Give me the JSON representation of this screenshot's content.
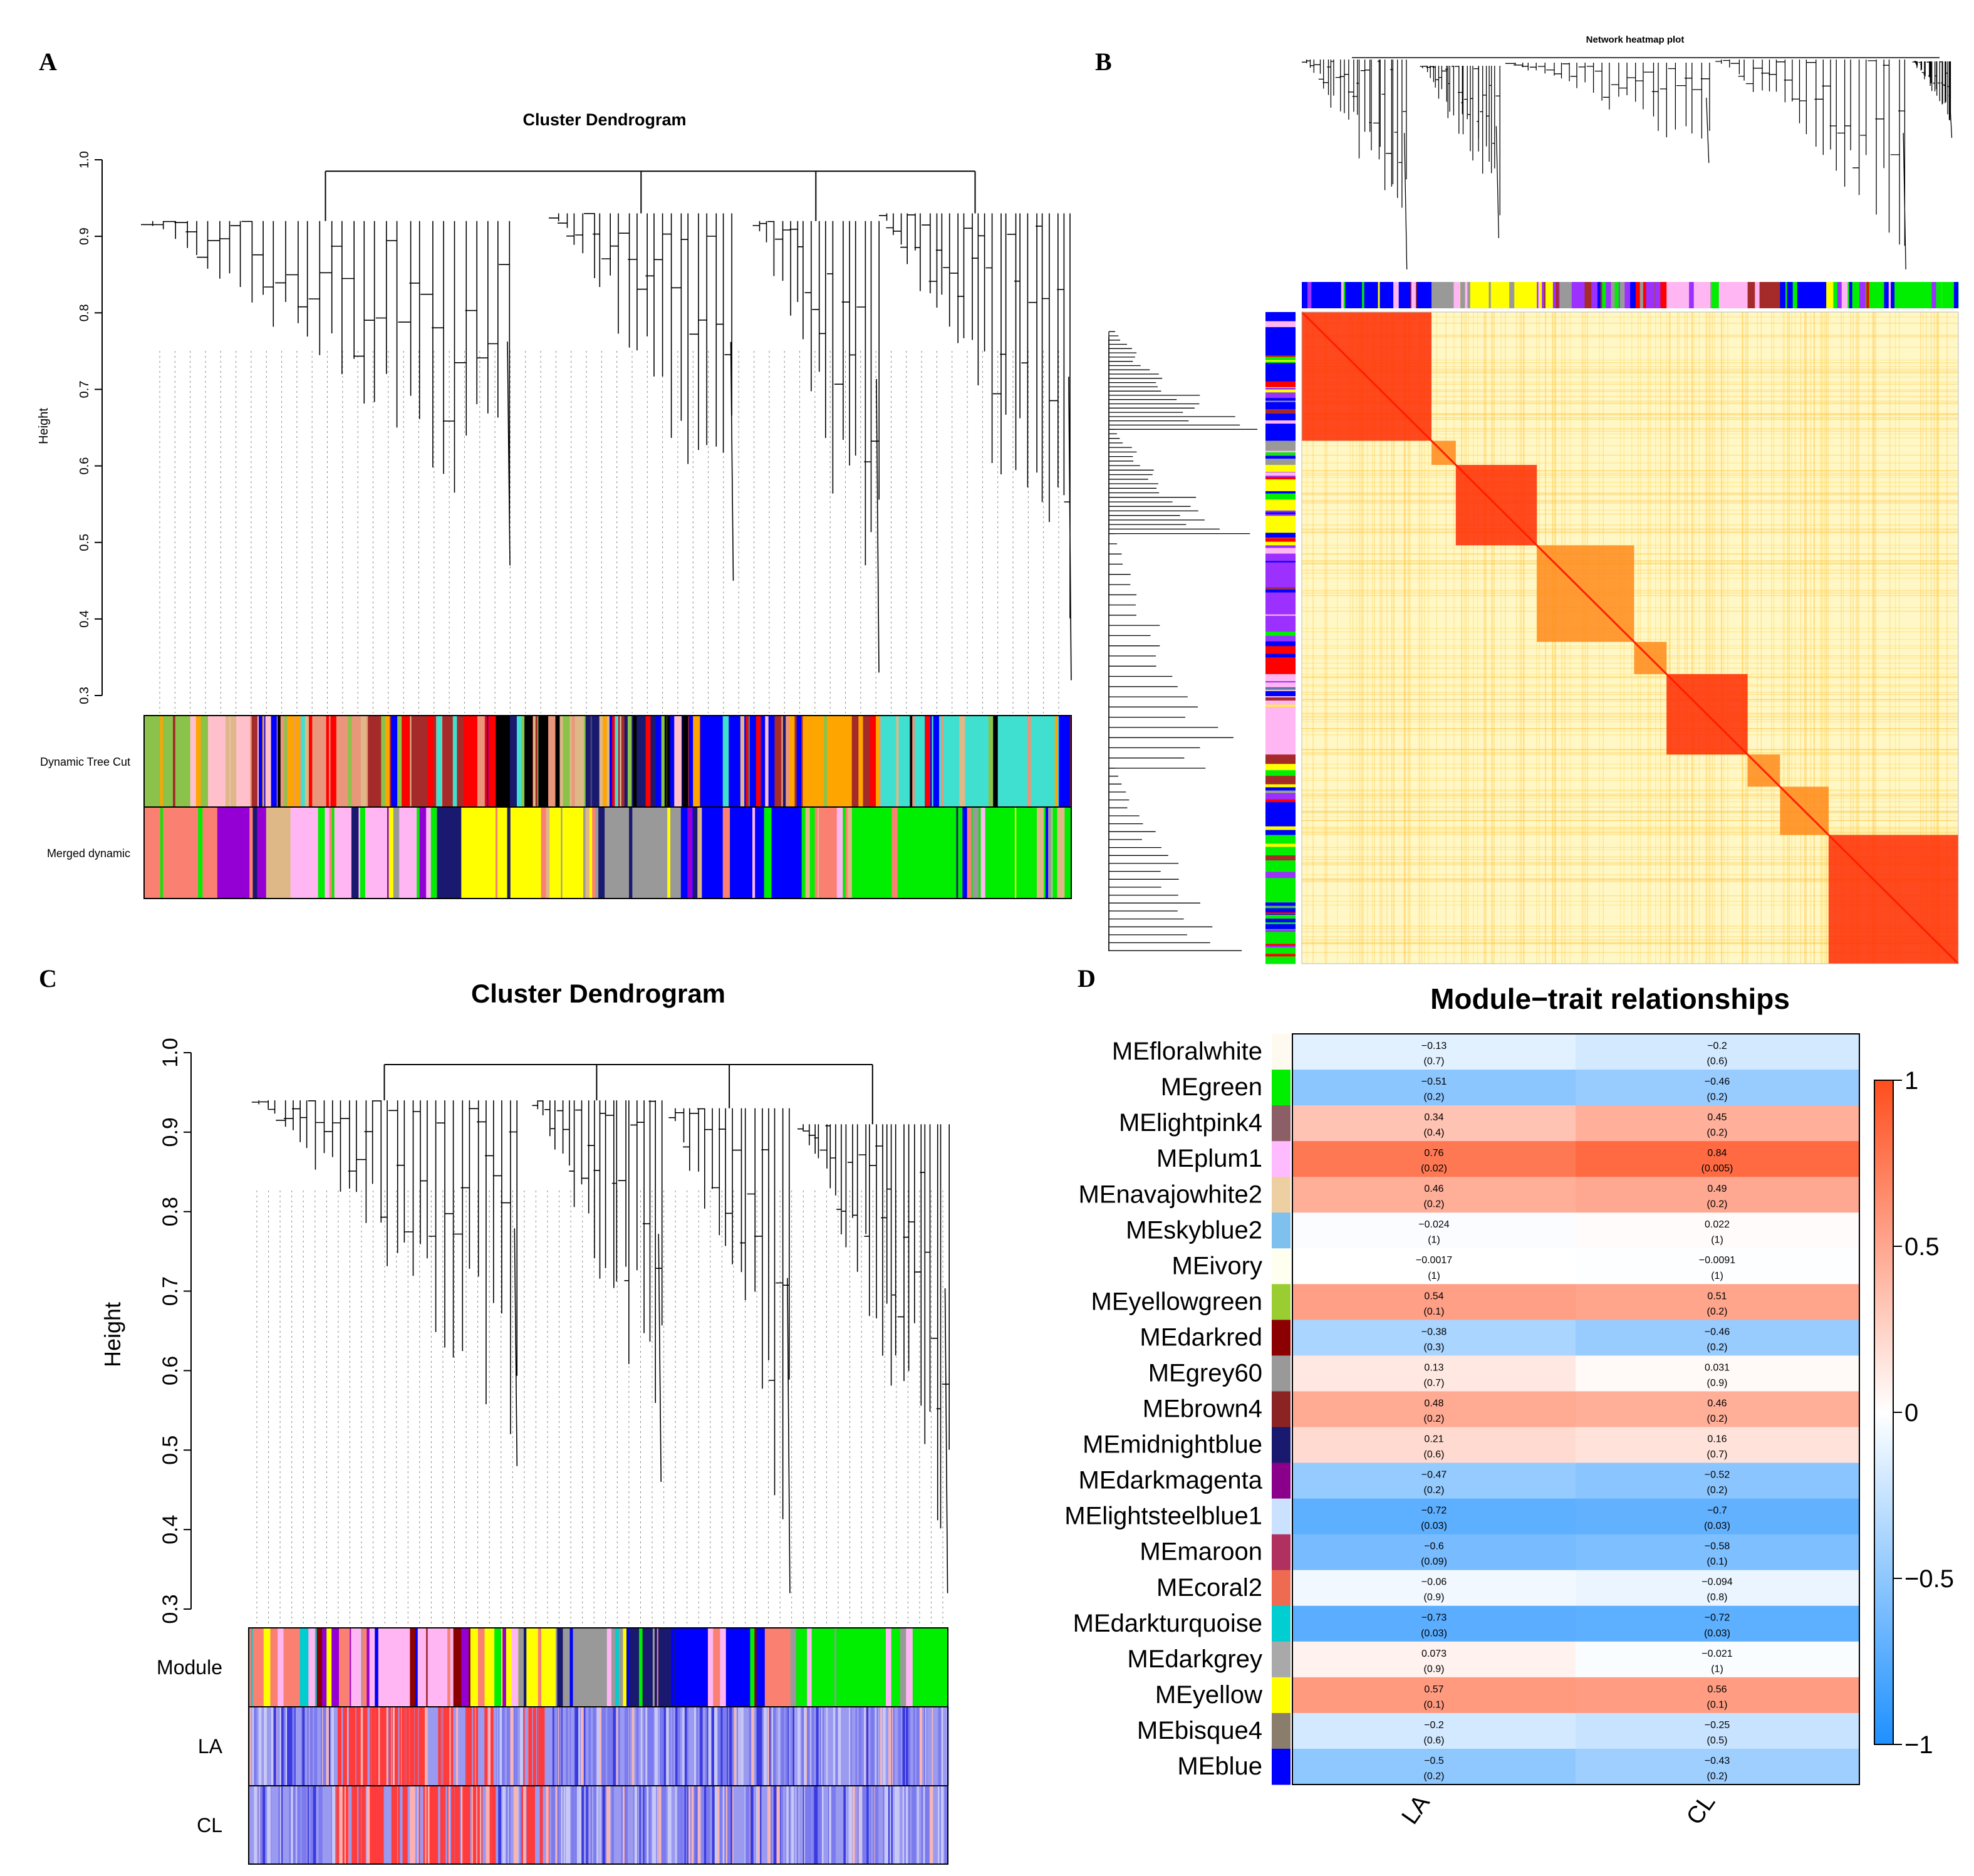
{
  "panels": {
    "a": "A",
    "b": "B",
    "c": "C",
    "d": "D"
  },
  "chart_data": [
    {
      "type": "dendrogram",
      "panel": "A",
      "title": "Cluster Dendrogram",
      "ylabel": "Height",
      "ylim": [
        0.3,
        1.0
      ],
      "yticks": [
        "0.3",
        "0.4",
        "0.5",
        "0.6",
        "0.7",
        "0.8",
        "0.9",
        "1.0"
      ],
      "row_labels": [
        "Dynamic Tree Cut",
        "Merged dynamic"
      ],
      "cluster_bottoms": [
        0.47,
        0.45,
        0.33,
        0.32
      ],
      "dynamic_colors": [
        "#8bc34a",
        "#ffc0cb",
        "#e9967a",
        "#a52a2a",
        "#ff0000",
        "#000000",
        "#deb887",
        "#191970",
        "#0000ff",
        "#ffa500",
        "#40e0d0"
      ],
      "merged_colors": [
        "#fa8072",
        "#9400d3",
        "#deb887",
        "#ffb6f3",
        "#191970",
        "#ffff00",
        "#999999",
        "#0000ff",
        "#fa8072",
        "#00ee00"
      ]
    },
    {
      "type": "heatmap",
      "panel": "B",
      "title": "Network heatmap plot",
      "module_order": [
        "#0000ff",
        "#999999",
        "#ffff00",
        "#9b30ff",
        "#ff0000",
        "#ffb6f3",
        "#a52a2a",
        "#0000ff",
        "#00ee00"
      ]
    },
    {
      "type": "dendrogram",
      "panel": "C",
      "title": "Cluster Dendrogram",
      "ylabel": "Height",
      "ylim": [
        0.3,
        1.0
      ],
      "yticks": [
        "0.3",
        "0.4",
        "0.5",
        "0.6",
        "0.7",
        "0.8",
        "0.9",
        "1.0"
      ],
      "row_labels": [
        "Module",
        "LA",
        "CL"
      ],
      "cluster_bottoms": [
        0.48,
        0.46,
        0.32,
        0.32
      ],
      "module_colors": [
        "#fa8072",
        "#00ced1",
        "#9400d3",
        "#ffb6f3",
        "#8b0000",
        "#ffff00",
        "#999999",
        "#191970",
        "#0000ff",
        "#fa8072",
        "#00ee00"
      ]
    },
    {
      "type": "table",
      "panel": "D",
      "title": "Module−trait relationships",
      "traits": [
        "LA",
        "CL"
      ],
      "colorbar_ticks": [
        "1",
        "0.5",
        "0",
        "−0.5",
        "−1"
      ],
      "modules": [
        {
          "name": "MEfloralwhite",
          "color": "#fffaf0",
          "r": [
            -0.13,
            -0.2
          ],
          "cor": [
            "−0.13",
            "−0.2"
          ],
          "p": [
            "(0.7)",
            "(0.6)"
          ]
        },
        {
          "name": "MEgreen",
          "color": "#00ee00",
          "r": [
            -0.51,
            -0.46
          ],
          "cor": [
            "−0.51",
            "−0.46"
          ],
          "p": [
            "(0.2)",
            "(0.2)"
          ]
        },
        {
          "name": "MElightpink4",
          "color": "#8b5f65",
          "r": [
            0.34,
            0.45
          ],
          "cor": [
            "0.34",
            "0.45"
          ],
          "p": [
            "(0.4)",
            "(0.2)"
          ]
        },
        {
          "name": "MEplum1",
          "color": "#ffbbff",
          "r": [
            0.76,
            0.84
          ],
          "cor": [
            "0.76",
            "0.84"
          ],
          "p": [
            "(0.02)",
            "(0.005)"
          ]
        },
        {
          "name": "MEnavajowhite2",
          "color": "#eecfa1",
          "r": [
            0.46,
            0.49
          ],
          "cor": [
            "0.46",
            "0.49"
          ],
          "p": [
            "(0.2)",
            "(0.2)"
          ]
        },
        {
          "name": "MEskyblue2",
          "color": "#7ec0ee",
          "r": [
            -0.024,
            0.022
          ],
          "cor": [
            "−0.024",
            "0.022"
          ],
          "p": [
            "(1)",
            "(1)"
          ]
        },
        {
          "name": "MEivory",
          "color": "#fffff0",
          "r": [
            -0.0017,
            -0.0091
          ],
          "cor": [
            "−0.0017",
            "−0.0091"
          ],
          "p": [
            "(1)",
            "(1)"
          ]
        },
        {
          "name": "MEyellowgreen",
          "color": "#9acd32",
          "r": [
            0.54,
            0.51
          ],
          "cor": [
            "0.54",
            "0.51"
          ],
          "p": [
            "(0.1)",
            "(0.2)"
          ]
        },
        {
          "name": "MEdarkred",
          "color": "#8b0000",
          "r": [
            -0.38,
            -0.46
          ],
          "cor": [
            "−0.38",
            "−0.46"
          ],
          "p": [
            "(0.3)",
            "(0.2)"
          ]
        },
        {
          "name": "MEgrey60",
          "color": "#999999",
          "r": [
            0.13,
            0.031
          ],
          "cor": [
            "0.13",
            "0.031"
          ],
          "p": [
            "(0.7)",
            "(0.9)"
          ]
        },
        {
          "name": "MEbrown4",
          "color": "#8b2323",
          "r": [
            0.48,
            0.46
          ],
          "cor": [
            "0.48",
            "0.46"
          ],
          "p": [
            "(0.2)",
            "(0.2)"
          ]
        },
        {
          "name": "MEmidnightblue",
          "color": "#191970",
          "r": [
            0.21,
            0.16
          ],
          "cor": [
            "0.21",
            "0.16"
          ],
          "p": [
            "(0.6)",
            "(0.7)"
          ]
        },
        {
          "name": "MEdarkmagenta",
          "color": "#8b008b",
          "r": [
            -0.47,
            -0.52
          ],
          "cor": [
            "−0.47",
            "−0.52"
          ],
          "p": [
            "(0.2)",
            "(0.2)"
          ]
        },
        {
          "name": "MElightsteelblue1",
          "color": "#cae1ff",
          "r": [
            -0.72,
            -0.7
          ],
          "cor": [
            "−0.72",
            "−0.7"
          ],
          "p": [
            "(0.03)",
            "(0.03)"
          ]
        },
        {
          "name": "MEmaroon",
          "color": "#b03060",
          "r": [
            -0.6,
            -0.58
          ],
          "cor": [
            "−0.6",
            "−0.58"
          ],
          "p": [
            "(0.09)",
            "(0.1)"
          ]
        },
        {
          "name": "MEcoral2",
          "color": "#ee6a50",
          "r": [
            -0.06,
            -0.094
          ],
          "cor": [
            "−0.06",
            "−0.094"
          ],
          "p": [
            "(0.9)",
            "(0.8)"
          ]
        },
        {
          "name": "MEdarkturquoise",
          "color": "#00ced1",
          "r": [
            -0.73,
            -0.72
          ],
          "cor": [
            "−0.73",
            "−0.72"
          ],
          "p": [
            "(0.03)",
            "(0.03)"
          ]
        },
        {
          "name": "MEdarkgrey",
          "color": "#a9a9a9",
          "r": [
            0.073,
            -0.021
          ],
          "cor": [
            "0.073",
            "−0.021"
          ],
          "p": [
            "(0.9)",
            "(1)"
          ]
        },
        {
          "name": "MEyellow",
          "color": "#ffff00",
          "r": [
            0.57,
            0.56
          ],
          "cor": [
            "0.57",
            "0.56"
          ],
          "p": [
            "(0.1)",
            "(0.1)"
          ]
        },
        {
          "name": "MEbisque4",
          "color": "#8b7d6b",
          "r": [
            -0.2,
            -0.25
          ],
          "cor": [
            "−0.2",
            "−0.25"
          ],
          "p": [
            "(0.6)",
            "(0.5)"
          ]
        },
        {
          "name": "MEblue",
          "color": "#0000ff",
          "r": [
            -0.5,
            -0.43
          ],
          "cor": [
            "−0.5",
            "−0.43"
          ],
          "p": [
            "(0.2)",
            "(0.2)"
          ]
        }
      ]
    }
  ]
}
